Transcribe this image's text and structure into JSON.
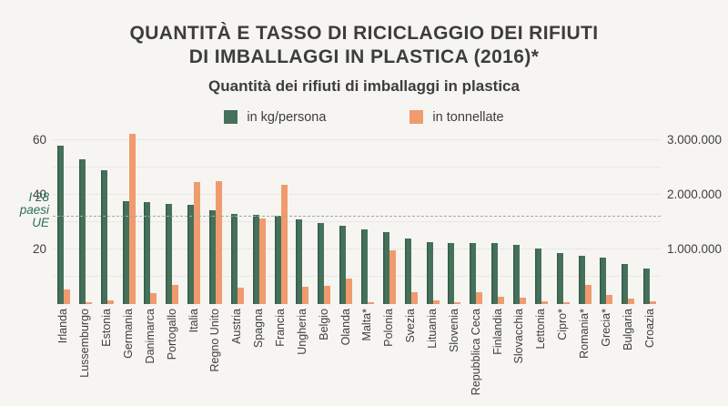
{
  "header": {
    "title_line1": "QUANTITÀ E TASSO DI RICICLAGGIO DEI RIFIUTI",
    "title_line2": "DI IMBALLAGGI IN PLASTICA (2016)*",
    "subtitle": "Quantità dei rifiuti di imballaggi in plastica"
  },
  "legend": [
    {
      "label": "in kg/persona",
      "color": "#45715a"
    },
    {
      "label": "in tonnellate",
      "color": "#f09b6e"
    }
  ],
  "chart_data": {
    "type": "bar",
    "title": "Quantità dei rifiuti di imballaggi in plastica",
    "categories": [
      "Irlanda",
      "Lussemburgo",
      "Estonia",
      "Germania",
      "Danimarca",
      "Portogallo",
      "Italia",
      "Regno Unito",
      "Austria",
      "Spagna",
      "Francia",
      "Ungheria",
      "Belgio",
      "Olanda",
      "Malta*",
      "Polonia",
      "Svezia",
      "Lituania",
      "Slovenia",
      "Repubblica Ceca",
      "Finlandia",
      "Slovacchia",
      "Lettonia",
      "Cipro*",
      "Romania*",
      "Grecia*",
      "Bulgaria",
      "Croazia"
    ],
    "series": [
      {
        "name": "in kg/persona",
        "axis": "left",
        "color": "#45715a",
        "values": [
          58,
          53,
          49,
          37.8,
          37.3,
          36.7,
          36.4,
          34.4,
          33,
          32.7,
          32.2,
          31,
          29.6,
          28.7,
          27.2,
          26.3,
          24,
          22.7,
          22.3,
          22.3,
          22.2,
          21.8,
          20.3,
          18.7,
          17.8,
          17,
          14.8,
          12.9
        ]
      },
      {
        "name": "in tonnellate",
        "axis": "right",
        "color": "#f09b6e",
        "values": [
          270000,
          30000,
          60000,
          3110000,
          200000,
          350000,
          2230000,
          2250000,
          300000,
          1560000,
          2190000,
          310000,
          340000,
          470000,
          15000,
          990000,
          220000,
          60000,
          40000,
          210000,
          130000,
          120000,
          45000,
          17000,
          350000,
          170000,
          100000,
          55000
        ]
      }
    ],
    "left_axis": {
      "ticks": [
        "60",
        "40",
        "20"
      ],
      "tick_values": [
        60,
        40,
        20
      ],
      "unit": "kg/persona",
      "range": [
        0,
        63.3
      ]
    },
    "right_axis": {
      "ticks": [
        "3.000.000",
        "2.000.000",
        "1.000.000"
      ],
      "tick_values": [
        3000000,
        2000000,
        1000000
      ],
      "unit": "tonnellate",
      "range": [
        0,
        3166000
      ]
    },
    "reference_line": {
      "label_line1": "I 28",
      "label_line2": "paesi UE",
      "value_kg": 32,
      "style": "dashed"
    },
    "grid": true,
    "legend_position": "top"
  }
}
